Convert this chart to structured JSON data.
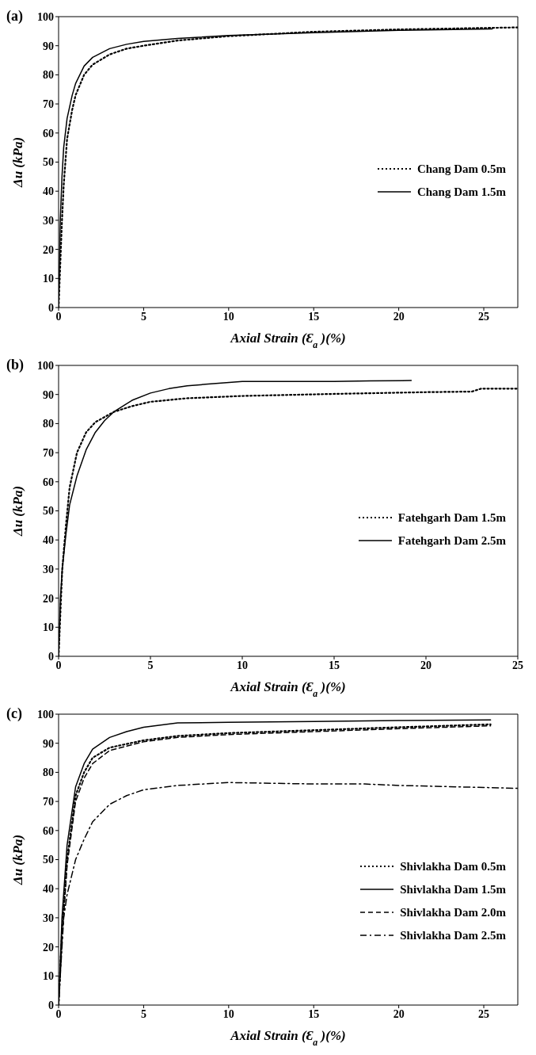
{
  "chart_data": [
    {
      "type": "line",
      "title": "(a)",
      "xlabel": "Axial Strain (Ɛ$_{a}$)(%)",
      "ylabel": "Δu (kPa)",
      "xlim": [
        0,
        27
      ],
      "xticks": [
        0,
        5,
        10,
        15,
        20,
        25
      ],
      "ylim": [
        0,
        100
      ],
      "yticks": [
        0,
        10,
        20,
        30,
        40,
        50,
        60,
        70,
        80,
        90,
        100
      ],
      "legend": "right",
      "marker": "none",
      "series": [
        {
          "name": "Chang Dam 0.5m",
          "color": "#000000",
          "line_style": "dotted",
          "x": [
            0,
            0.1,
            0.2,
            0.3,
            0.5,
            0.8,
            1,
            1.5,
            2,
            3,
            4,
            5,
            7,
            10,
            15,
            20,
            27
          ],
          "values": [
            0,
            15,
            30,
            42,
            58,
            68,
            73,
            80,
            83.5,
            87,
            89,
            90,
            91.8,
            93.3,
            94.8,
            95.6,
            96.3
          ]
        },
        {
          "name": "Chang Dam 1.5m",
          "color": "#000000",
          "line_style": "solid",
          "x": [
            0,
            0.1,
            0.2,
            0.3,
            0.5,
            0.8,
            1,
            1.5,
            2,
            3,
            4,
            5,
            7,
            10,
            15,
            20,
            25.5
          ],
          "values": [
            0,
            30,
            45,
            55,
            65,
            73,
            77,
            83,
            86,
            89,
            90.5,
            91.5,
            92.5,
            93.5,
            94.5,
            95.3,
            95.8
          ]
        }
      ]
    },
    {
      "type": "line",
      "title": "(b)",
      "xlabel": "Axial Strain (Ɛ$_{a}$)(%)",
      "ylabel": "Δu (kPa)",
      "xlim": [
        0,
        25
      ],
      "xticks": [
        0,
        5,
        10,
        15,
        20,
        25
      ],
      "ylim": [
        0,
        100
      ],
      "yticks": [
        0,
        10,
        20,
        30,
        40,
        50,
        60,
        70,
        80,
        90,
        100
      ],
      "legend": "right",
      "marker": "none",
      "series": [
        {
          "name": "Fatehgarh Dam 1.5m",
          "color": "#000000",
          "line_style": "dotted",
          "x": [
            0,
            0.1,
            0.2,
            0.4,
            0.6,
            1,
            1.5,
            2,
            3,
            4,
            5,
            7,
            10,
            15,
            20,
            22.5,
            23,
            25
          ],
          "values": [
            0,
            15,
            30,
            45,
            58,
            70,
            77,
            80.5,
            84,
            86,
            87.5,
            88.7,
            89.5,
            90.2,
            90.8,
            91,
            92,
            92
          ]
        },
        {
          "name": "Fatehgarh Dam 2.5m",
          "color": "#000000",
          "line_style": "solid",
          "x": [
            0,
            0.1,
            0.2,
            0.4,
            0.6,
            1,
            1.5,
            2,
            2.5,
            3,
            4,
            5,
            6,
            7,
            8,
            9,
            10,
            12,
            15,
            17,
            19.2
          ],
          "values": [
            0,
            20,
            30,
            42,
            52,
            62,
            71,
            77,
            81,
            84,
            88,
            90.5,
            92,
            93,
            93.5,
            94,
            94.5,
            94.5,
            94.5,
            94.7,
            94.8
          ]
        }
      ]
    },
    {
      "type": "line",
      "title": "(c)",
      "xlabel": "Axial Strain (Ɛ$_{a}$)(%)",
      "ylabel": "Δu (kPa)",
      "xlim": [
        0,
        27
      ],
      "xticks": [
        0,
        5,
        10,
        15,
        20,
        25
      ],
      "ylim": [
        0,
        100
      ],
      "yticks": [
        0,
        10,
        20,
        30,
        40,
        50,
        60,
        70,
        80,
        90,
        100
      ],
      "legend": "right",
      "marker": "none",
      "series": [
        {
          "name": "Shivlakha Dam 0.5m",
          "color": "#000000",
          "line_style": "dotted",
          "x": [
            0,
            0.2,
            0.5,
            1,
            1.5,
            2,
            3,
            5,
            7,
            10,
            15,
            20,
            25.4
          ],
          "values": [
            0,
            25,
            50,
            72,
            80,
            85,
            88.5,
            91,
            92.5,
            93.5,
            94.5,
            95.5,
            96.5
          ]
        },
        {
          "name": "Shivlakha Dam 1.5m",
          "color": "#000000",
          "line_style": "solid",
          "x": [
            0,
            0.2,
            0.5,
            1,
            1.5,
            2,
            3,
            4,
            5,
            7,
            10,
            15,
            20,
            25.4
          ],
          "values": [
            0,
            30,
            55,
            75,
            83,
            88,
            92,
            94,
            95.5,
            97,
            97.2,
            97.5,
            97.8,
            98
          ]
        },
        {
          "name": "Shivlakha Dam 2.0m",
          "color": "#000000",
          "line_style": "dashed",
          "x": [
            0,
            0.2,
            0.5,
            1,
            1.5,
            2,
            3,
            5,
            7,
            10,
            15,
            20,
            25.4
          ],
          "values": [
            0,
            22,
            48,
            70,
            78,
            83,
            87.5,
            90.5,
            92,
            93,
            94,
            95,
            96
          ]
        },
        {
          "name": "Shivlakha Dam 2.5m",
          "color": "#000000",
          "line_style": "dashdot",
          "x": [
            0,
            0.3,
            0.5,
            1,
            1.5,
            2,
            3,
            4,
            5,
            7,
            10,
            15,
            18,
            20,
            25,
            27
          ],
          "values": [
            0,
            30,
            38,
            50,
            57,
            63,
            69,
            72,
            74,
            75.5,
            76.5,
            76,
            76,
            75.5,
            74.8,
            74.5
          ]
        }
      ]
    }
  ]
}
